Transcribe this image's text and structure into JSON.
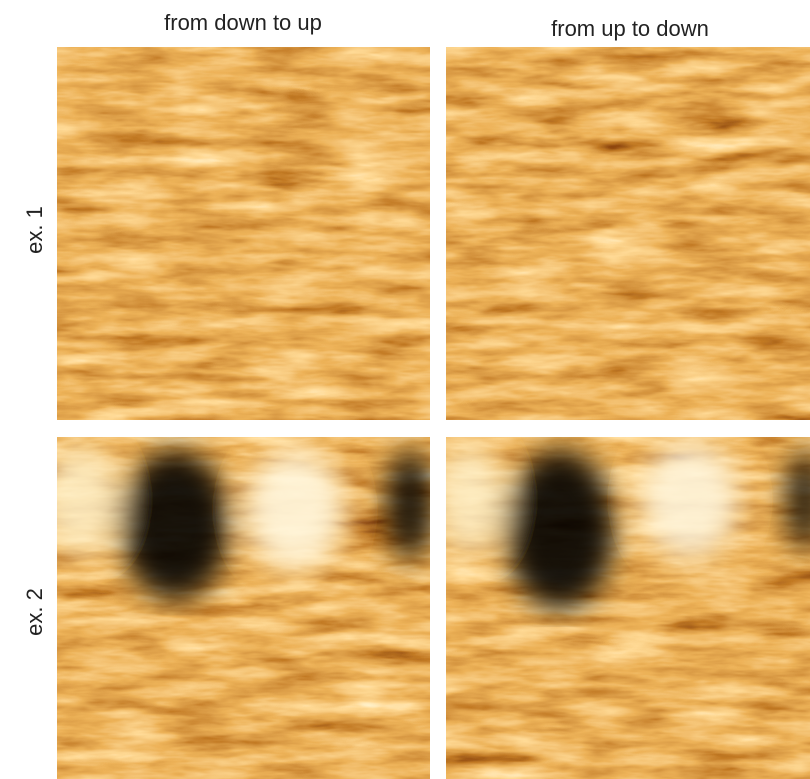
{
  "columns": [
    "from down to up",
    "from up to down"
  ],
  "rows": [
    "ex. 1",
    "ex. 2"
  ]
}
